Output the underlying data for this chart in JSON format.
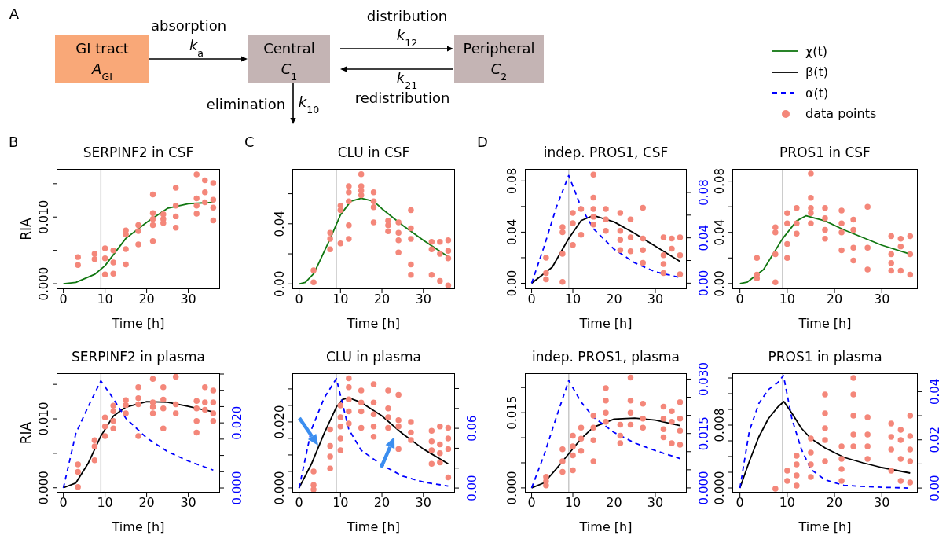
{
  "chart_data": [
    {
      "type": "other",
      "annotations": [
        "A",
        "GI tract",
        "A$_{GI}$",
        "absorption",
        "k$_{a}$",
        "Central",
        "C$_{1}$",
        "distribution",
        "k$_{12}$",
        "k$_{21}$",
        "redistribution",
        "Peripheral",
        "C$_{2}$",
        "elimination",
        "k$_{10}$"
      ]
    },
    {
      "type": "line",
      "title": "SERPINF2 in CSF",
      "xlabel": "Time [h]",
      "ylabel": "RIA",
      "annotations": [
        "B"
      ],
      "legend": "top right",
      "xlim": [
        -1.44,
        37.44
      ],
      "xticks": [
        0,
        10,
        20,
        30
      ],
      "ylim": [
        -0.0007,
        0.0171
      ],
      "yticks": [
        {
          "value": 0,
          "label": "0.000"
        },
        {
          "value": 0.005,
          "label": null
        },
        {
          "value": 0.01,
          "label": "0.010"
        },
        {
          "value": 0.015,
          "label": null
        }
      ],
      "ref_lines": [
        {
          "axis": "x",
          "value": 9,
          "color": "#c8c8c8"
        }
      ],
      "series": [
        {
          "name": "χ(t)",
          "color": "#117711",
          "x": [
            0,
            3,
            7.5,
            10,
            15,
            20,
            25,
            30,
            36
          ],
          "values": [
            0,
            0.0002,
            0.0014,
            0.0027,
            0.0068,
            0.0092,
            0.0113,
            0.012,
            0.0122
          ]
        },
        {
          "name": "data points",
          "type": "scatter",
          "marker": "circle",
          "color": "#f4877a",
          "x": [
            3.5,
            3.5,
            7.5,
            7.5,
            10,
            10,
            10,
            12,
            12,
            12,
            15,
            15,
            15,
            15,
            18,
            18,
            18,
            21.5,
            21.5,
            21.5,
            21.5,
            21.5,
            24,
            24,
            24,
            27,
            27,
            27,
            27,
            32,
            32,
            32,
            32,
            34,
            34,
            34,
            36,
            36,
            36,
            36
          ],
          "values": [
            0.004,
            0.0028,
            0.0045,
            0.0037,
            0.0053,
            0.0038,
            0.0014,
            0.005,
            0.0032,
            0.0015,
            0.008,
            0.0074,
            0.0052,
            0.0029,
            0.0088,
            0.0079,
            0.0059,
            0.0134,
            0.0106,
            0.0097,
            0.0088,
            0.0064,
            0.0104,
            0.0097,
            0.0091,
            0.0144,
            0.0117,
            0.0101,
            0.0084,
            0.0164,
            0.0128,
            0.0117,
            0.0105,
            0.0155,
            0.0137,
            0.0122,
            0.0151,
            0.0126,
            0.0114,
            0.0095
          ]
        }
      ]
    },
    {
      "type": "line",
      "title": "CLU in CSF",
      "xlabel": "Time [h]",
      "annotations": [
        "C"
      ],
      "legend": "top right",
      "xlim": [
        -1.44,
        37.44
      ],
      "xticks": [
        0,
        10,
        20,
        30
      ],
      "ylim": [
        -0.003,
        0.076
      ],
      "yticks": [
        {
          "value": 0,
          "label": "0.00"
        },
        {
          "value": 0.02,
          "label": null
        },
        {
          "value": 0.04,
          "label": "0.04"
        },
        {
          "value": 0.06,
          "label": null
        }
      ],
      "ref_lines": [
        {
          "axis": "x",
          "value": 9,
          "color": "#c8c8c8"
        }
      ],
      "series": [
        {
          "name": "χ(t)",
          "color": "#117711",
          "x": [
            0,
            1.5,
            3.6,
            7.5,
            10,
            12.5,
            15,
            18,
            20,
            25,
            30,
            36
          ],
          "values": [
            0,
            0.001,
            0.007,
            0.03,
            0.046,
            0.055,
            0.057,
            0.055,
            0.05,
            0.039,
            0.029,
            0.018
          ]
        },
        {
          "name": "data points",
          "type": "scatter",
          "marker": "circle",
          "color": "#f4877a",
          "x": [
            3.5,
            3.5,
            7.5,
            7.5,
            7.5,
            10,
            10,
            10,
            12,
            12,
            12,
            12,
            12,
            15,
            15,
            15,
            15,
            18,
            18,
            18,
            18,
            21.5,
            21.5,
            21.5,
            24,
            24,
            24,
            24,
            27,
            27,
            27,
            27,
            27,
            32,
            32,
            32,
            34,
            34,
            34,
            36,
            36,
            36,
            36
          ],
          "values": [
            0.009,
            0.001,
            0.034,
            0.03,
            0.023,
            0.052,
            0.049,
            0.027,
            0.065,
            0.061,
            0.055,
            0.039,
            0.03,
            0.073,
            0.065,
            0.062,
            0.059,
            0.061,
            0.055,
            0.051,
            0.041,
            0.042,
            0.039,
            0.035,
            0.041,
            0.034,
            0.029,
            0.021,
            0.049,
            0.037,
            0.03,
            0.013,
            0.006,
            0.028,
            0.023,
            0.006,
            0.028,
            0.02,
            0.002,
            0.029,
            0.022,
            0.017,
            -0.001
          ]
        }
      ]
    },
    {
      "type": "line",
      "title": "indep. PROS1, CSF",
      "xlabel": "Time [h]",
      "annotations": [
        "D"
      ],
      "legend": "top right",
      "xlim": [
        -1.44,
        37.44
      ],
      "xticks": [
        0,
        10,
        20,
        30
      ],
      "ylim": [
        -0.004,
        0.0888
      ],
      "yticks": [
        {
          "value": 0,
          "label": "0.00"
        },
        {
          "value": 0.02,
          "label": null
        },
        {
          "value": 0.04,
          "label": "0.04"
        },
        {
          "value": 0.06,
          "label": null
        },
        {
          "value": 0.08,
          "label": "0.08"
        }
      ],
      "y2lim": [
        -0.0046,
        0.1001
      ],
      "y2ticks": [
        {
          "value": 0,
          "label": "0.00"
        },
        {
          "value": 0.02,
          "label": null
        },
        {
          "value": 0.04,
          "label": "0.04"
        },
        {
          "value": 0.06,
          "label": null
        },
        {
          "value": 0.08,
          "label": "0.08"
        }
      ],
      "ref_lines": [
        {
          "axis": "x",
          "value": 9,
          "color": "#c8c8c8"
        }
      ],
      "series": [
        {
          "name": "β(t)",
          "color": "#000000",
          "x": [
            0,
            5,
            9,
            12,
            15,
            20,
            25,
            30,
            36
          ],
          "values": [
            0,
            0.0126,
            0.035,
            0.049,
            0.053,
            0.048,
            0.039,
            0.029,
            0.017
          ]
        },
        {
          "name": "α(t)",
          "color": "#0000ff",
          "axis": "y2",
          "line_style": "dashed",
          "x": [
            0,
            3,
            6,
            9,
            12,
            15,
            20,
            25,
            30,
            36
          ],
          "values": [
            0,
            0.032,
            0.067,
            0.095,
            0.067,
            0.048,
            0.03,
            0.018,
            0.01,
            0.005
          ]
        },
        {
          "name": "data points",
          "type": "scatter",
          "marker": "circle",
          "color": "#f4877a",
          "x": [
            3.5,
            3.5,
            3.5,
            7.5,
            7.5,
            7.5,
            7.5,
            10,
            10,
            10,
            12,
            12,
            15,
            15,
            15,
            15,
            15,
            18,
            18,
            18,
            21.5,
            21.5,
            21.5,
            21.5,
            24,
            24,
            24,
            27,
            27,
            27,
            27,
            32,
            32,
            32,
            32,
            34,
            34,
            36,
            36,
            36
          ],
          "values": [
            0.008,
            0.003,
            0.02,
            0.044,
            0.04,
            0.023,
            0.001,
            0.055,
            0.047,
            0.03,
            0.058,
            0.038,
            0.085,
            0.067,
            0.058,
            0.052,
            0.046,
            0.058,
            0.05,
            0.041,
            0.055,
            0.041,
            0.034,
            0.026,
            0.05,
            0.036,
            0.025,
            0.059,
            0.035,
            0.026,
            0.016,
            0.036,
            0.022,
            0.015,
            0.008,
            0.035,
            0.027,
            0.036,
            0.022,
            0.007
          ]
        }
      ]
    },
    {
      "type": "line",
      "title": "PROS1 in CSF",
      "xlabel": "Time [h]",
      "legend": "top right",
      "xlim": [
        -1.44,
        37.44
      ],
      "xticks": [
        0,
        10,
        20,
        30
      ],
      "ylim": [
        -0.0038,
        0.089
      ],
      "yticks": [
        {
          "value": 0,
          "label": "0.00"
        },
        {
          "value": 0.02,
          "label": null
        },
        {
          "value": 0.04,
          "label": "0.04"
        },
        {
          "value": 0.06,
          "label": null
        },
        {
          "value": 0.08,
          "label": "0.08"
        }
      ],
      "ref_lines": [
        {
          "axis": "x",
          "value": 9,
          "color": "#c8c8c8"
        }
      ],
      "series": [
        {
          "name": "χ(t)",
          "color": "#117711",
          "x": [
            0,
            1.5,
            5,
            9,
            12,
            14,
            18,
            22,
            26,
            30,
            36
          ],
          "values": [
            0,
            0.001,
            0.011,
            0.035,
            0.049,
            0.053,
            0.049,
            0.042,
            0.036,
            0.03,
            0.023
          ]
        },
        {
          "name": "data points",
          "type": "scatter",
          "marker": "circle",
          "color": "#f4877a",
          "x": [
            3.6,
            3.6,
            3.6,
            7.5,
            7.5,
            7.5,
            7.5,
            10,
            10,
            10,
            10,
            12,
            12,
            12,
            15,
            15,
            15,
            15,
            15,
            18,
            18,
            18,
            18,
            21.5,
            21.5,
            21.5,
            21.5,
            24,
            24,
            24,
            24,
            27,
            27,
            27,
            32,
            32,
            32,
            32,
            34,
            34,
            34,
            36,
            36,
            36
          ],
          "values": [
            0.02,
            0.007,
            0.004,
            0.044,
            0.04,
            0.023,
            0.001,
            0.055,
            0.047,
            0.031,
            0.02,
            0.059,
            0.047,
            0.039,
            0.086,
            0.067,
            0.059,
            0.055,
            0.047,
            0.059,
            0.051,
            0.042,
            0.035,
            0.057,
            0.047,
            0.04,
            0.026,
            0.05,
            0.042,
            0.028,
            0.018,
            0.06,
            0.028,
            0.011,
            0.037,
            0.023,
            0.016,
            0.01,
            0.035,
            0.029,
            0.01,
            0.037,
            0.023,
            0.007
          ]
        }
      ]
    },
    {
      "type": "line",
      "title": "SERPINF2 in plasma",
      "xlabel": "Time [h]",
      "ylabel": "RIA",
      "legend": "top right",
      "xlim": [
        -1.44,
        37.44
      ],
      "xticks": [
        0,
        10,
        20,
        30
      ],
      "ylim": [
        -0.0006,
        0.0165
      ],
      "yticks": [
        {
          "value": 0,
          "label": "0.000"
        },
        {
          "value": 0.005,
          "label": null
        },
        {
          "value": 0.01,
          "label": "0.010"
        },
        {
          "value": 0.015,
          "label": null
        }
      ],
      "y2lim": [
        -0.0012,
        0.035
      ],
      "y2ticks": [
        {
          "value": 0,
          "label": "0.000"
        },
        {
          "value": 0.005,
          "label": null
        },
        {
          "value": 0.01,
          "label": null
        },
        {
          "value": 0.015,
          "label": null
        },
        {
          "value": 0.02,
          "label": "0.020"
        },
        {
          "value": 0.025,
          "label": null
        },
        {
          "value": 0.03,
          "label": null
        },
        {
          "value": 0.035,
          "label": null
        }
      ],
      "ref_lines": [
        {
          "axis": "x",
          "value": 9,
          "color": "#c8c8c8"
        }
      ],
      "series": [
        {
          "name": "β(t)",
          "color": "#000000",
          "x": [
            0,
            3,
            6,
            9,
            12,
            15,
            20,
            25,
            30,
            36
          ],
          "values": [
            0,
            0.0007,
            0.0036,
            0.0075,
            0.0104,
            0.0117,
            0.0125,
            0.0124,
            0.0118,
            0.011
          ]
        },
        {
          "name": "α(t)",
          "color": "#0000ff",
          "axis": "y2",
          "line_style": "dashed",
          "x": [
            0,
            3,
            6,
            9,
            12,
            15,
            20,
            25,
            30,
            36
          ],
          "values": [
            0,
            0.0168,
            0.0251,
            0.0329,
            0.0274,
            0.0214,
            0.0154,
            0.0112,
            0.0083,
            0.0055
          ]
        },
        {
          "name": "data points",
          "type": "scatter",
          "marker": "circle",
          "color": "#f4877a",
          "x": [
            3.5,
            3.5,
            3.5,
            7.5,
            7.5,
            7.5,
            10,
            10,
            10,
            12,
            12,
            12,
            12,
            15,
            15,
            15,
            18,
            18,
            18,
            18,
            21.5,
            21.5,
            21.5,
            21.5,
            24,
            24,
            24,
            24,
            27,
            27,
            27,
            32,
            32,
            32,
            32,
            34,
            34,
            34,
            36,
            36,
            36,
            36
          ],
          "values": [
            0.0034,
            0.0023,
            0.0001,
            0.0069,
            0.006,
            0.004,
            0.0102,
            0.0089,
            0.0075,
            0.0119,
            0.0111,
            0.0097,
            0.0086,
            0.0127,
            0.012,
            0.0108,
            0.0146,
            0.013,
            0.0121,
            0.0075,
            0.0158,
            0.0124,
            0.0117,
            0.0108,
            0.0146,
            0.0128,
            0.0115,
            0.0086,
            0.0161,
            0.0121,
            0.0108,
            0.0126,
            0.0115,
            0.0097,
            0.008,
            0.0146,
            0.0124,
            0.0113,
            0.0141,
            0.0124,
            0.0108,
            0.0097
          ]
        }
      ]
    },
    {
      "type": "line",
      "title": "CLU in plasma",
      "xlabel": "Time [h]",
      "legend": "top right",
      "xlim": [
        -1.44,
        37.44
      ],
      "xticks": [
        0,
        10,
        20,
        30
      ],
      "ylim": [
        -0.0012,
        0.0345
      ],
      "yticks": [
        {
          "value": 0,
          "label": "0.000"
        },
        {
          "value": 0.005,
          "label": null
        },
        {
          "value": 0.01,
          "label": null
        },
        {
          "value": 0.015,
          "label": null
        },
        {
          "value": 0.02,
          "label": "0.020"
        },
        {
          "value": 0.025,
          "label": null
        },
        {
          "value": 0.03,
          "label": null
        }
      ],
      "y2lim": [
        -0.0039,
        0.1146
      ],
      "y2ticks": [
        {
          "value": 0,
          "label": "0.00"
        },
        {
          "value": 0.02,
          "label": null
        },
        {
          "value": 0.04,
          "label": null
        },
        {
          "value": 0.06,
          "label": "0.06"
        },
        {
          "value": 0.08,
          "label": null
        },
        {
          "value": 0.1,
          "label": null
        }
      ],
      "ref_lines": [
        {
          "axis": "x",
          "value": 9,
          "color": "#c8c8c8"
        }
      ],
      "series": [
        {
          "name": "β(t)",
          "color": "#000000",
          "x": [
            0,
            3,
            6,
            9,
            10.5,
            12,
            15,
            20,
            25,
            30,
            36
          ],
          "values": [
            0,
            0.0073,
            0.0164,
            0.0245,
            0.0268,
            0.0273,
            0.0259,
            0.0218,
            0.0164,
            0.0118,
            0.0073
          ]
        },
        {
          "name": "α(t)",
          "color": "#0000ff",
          "axis": "y2",
          "line_style": "dashed",
          "x": [
            0,
            3,
            6,
            9,
            12,
            15,
            20,
            25,
            30,
            36
          ],
          "values": [
            0,
            0.059,
            0.09,
            0.11,
            0.059,
            0.038,
            0.023,
            0.012,
            0.006,
            0.002
          ]
        },
        {
          "name": "data points",
          "type": "scatter",
          "marker": "circle",
          "color": "#f4877a",
          "x": [
            3.5,
            3.5,
            3.5,
            7.5,
            7.5,
            7.5,
            7.5,
            10,
            10,
            10,
            10,
            10,
            12,
            12,
            12,
            12,
            12,
            15,
            15,
            15,
            15,
            18,
            18,
            18,
            18,
            18,
            21.5,
            21.5,
            21.5,
            21.5,
            24,
            24,
            24,
            24,
            27,
            27,
            27,
            32,
            32,
            32,
            32,
            34,
            34,
            34,
            34,
            36,
            36,
            36,
            36
          ],
          "values": [
            0.005,
            0.0009,
            -0.0005,
            0.0177,
            0.0127,
            0.0095,
            0.0059,
            0.025,
            0.0214,
            0.0186,
            0.015,
            0.0114,
            0.0332,
            0.0305,
            0.0268,
            0.0232,
            0.0195,
            0.0295,
            0.0259,
            0.0232,
            0.0182,
            0.0314,
            0.0259,
            0.0223,
            0.0186,
            0.0155,
            0.0295,
            0.0241,
            0.0214,
            0.0182,
            0.0282,
            0.0205,
            0.0186,
            0.0118,
            0.02,
            0.0168,
            0.0145,
            0.0173,
            0.0141,
            0.0114,
            0.0073,
            0.0186,
            0.0132,
            0.0105,
            0.0077,
            0.0182,
            0.015,
            0.0118,
            0.0032
          ]
        }
      ]
    },
    {
      "type": "line",
      "title": "indep. PROS1, plasma",
      "xlabel": "Time [h]",
      "legend": "top right",
      "xlim": [
        -1.44,
        37.44
      ],
      "xticks": [
        0,
        10,
        20,
        30
      ],
      "ylim": [
        -0.0008,
        0.0227
      ],
      "yticks": [
        {
          "value": 0,
          "label": "0.000"
        },
        {
          "value": 0.005,
          "label": null
        },
        {
          "value": 0.01,
          "label": null
        },
        {
          "value": 0.015,
          "label": "0.015"
        },
        {
          "value": 0.02,
          "label": null
        }
      ],
      "y2lim": [
        -0.0011,
        0.0314
      ],
      "y2ticks": [
        {
          "value": 0,
          "label": "0.000"
        },
        {
          "value": 0.005,
          "label": null
        },
        {
          "value": 0.01,
          "label": null
        },
        {
          "value": 0.015,
          "label": "0.015"
        },
        {
          "value": 0.02,
          "label": null
        },
        {
          "value": 0.025,
          "label": null
        },
        {
          "value": 0.03,
          "label": "0.030"
        }
      ],
      "ref_lines": [
        {
          "axis": "x",
          "value": 9,
          "color": "#c8c8c8"
        }
      ],
      "series": [
        {
          "name": "β(t)",
          "color": "#000000",
          "x": [
            0,
            3,
            6,
            9,
            12,
            15,
            20,
            25,
            30,
            36
          ],
          "values": [
            0,
            0.001,
            0.0038,
            0.0068,
            0.0098,
            0.0121,
            0.0137,
            0.0139,
            0.0135,
            0.0124
          ]
        },
        {
          "name": "α(t)",
          "color": "#0000ff",
          "axis": "y2",
          "line_style": "dashed",
          "x": [
            0,
            3,
            6,
            9,
            12,
            15,
            20,
            25,
            30,
            36
          ],
          "values": [
            0,
            0.009,
            0.0195,
            0.0296,
            0.0237,
            0.0195,
            0.0153,
            0.0124,
            0.0103,
            0.0081
          ]
        },
        {
          "name": "data points",
          "type": "scatter",
          "marker": "circle",
          "color": "#f4877a",
          "x": [
            3.5,
            3.5,
            3.5,
            7.5,
            7.5,
            7.5,
            10,
            10,
            10,
            10,
            12,
            12,
            12,
            15,
            15,
            15,
            15,
            18,
            18,
            18,
            18,
            21.5,
            21.5,
            21.5,
            24,
            24,
            24,
            24,
            27,
            27,
            27,
            32,
            32,
            32,
            32,
            34,
            34,
            34,
            36,
            36,
            36,
            36
          ],
          "values": [
            0.0022,
            0.0013,
            0.0005,
            0.0077,
            0.0053,
            0.0032,
            0.0104,
            0.0083,
            0.0065,
            0.0035,
            0.012,
            0.0098,
            0.0074,
            0.0144,
            0.012,
            0.0095,
            0.0053,
            0.0199,
            0.0174,
            0.015,
            0.0132,
            0.0126,
            0.0104,
            0.0089,
            0.022,
            0.0174,
            0.015,
            0.0126,
            0.0168,
            0.0138,
            0.012,
            0.0162,
            0.0138,
            0.0117,
            0.0101,
            0.0153,
            0.0132,
            0.0089,
            0.0171,
            0.0138,
            0.0114,
            0.0086
          ]
        }
      ]
    },
    {
      "type": "line",
      "title": "PROS1 in plasma",
      "xlabel": "Time [h]",
      "legend": "top right",
      "xlim": [
        -1.44,
        37.44
      ],
      "xticks": [
        0,
        10,
        20,
        30
      ],
      "ylim": [
        -0.0005,
        0.0145
      ],
      "yticks": [
        {
          "value": 0,
          "label": "0.000"
        },
        {
          "value": 0.002,
          "label": null
        },
        {
          "value": 0.004,
          "label": null
        },
        {
          "value": 0.006,
          "label": null
        },
        {
          "value": 0.008,
          "label": "0.008"
        },
        {
          "value": 0.01,
          "label": null
        },
        {
          "value": 0.012,
          "label": null
        },
        {
          "value": 0.014,
          "label": null
        }
      ],
      "y2lim": [
        -0.0016,
        0.0473
      ],
      "y2ticks": [
        {
          "value": 0,
          "label": "0.00"
        },
        {
          "value": 0.01,
          "label": null
        },
        {
          "value": 0.02,
          "label": "0.02"
        },
        {
          "value": 0.03,
          "label": null
        },
        {
          "value": 0.04,
          "label": "0.04"
        }
      ],
      "ref_lines": [
        {
          "axis": "x",
          "value": 9,
          "color": "#c8c8c8"
        }
      ],
      "series": [
        {
          "name": "β(t)",
          "color": "#000000",
          "x": [
            0,
            2,
            4,
            6,
            8,
            9.3,
            11,
            13,
            15,
            18,
            22,
            26,
            30,
            36
          ],
          "values": [
            0,
            0.0034,
            0.0065,
            0.0088,
            0.0103,
            0.011,
            0.0095,
            0.0076,
            0.0063,
            0.0051,
            0.0039,
            0.0032,
            0.0026,
            0.0019
          ]
        },
        {
          "name": "α(t)",
          "color": "#0000ff",
          "axis": "y2",
          "line_style": "dashed",
          "x": [
            0,
            2,
            4,
            6,
            8,
            9.2,
            11,
            13,
            15,
            18,
            22,
            30,
            36
          ],
          "values": [
            0,
            0.0237,
            0.0351,
            0.0408,
            0.0437,
            0.0467,
            0.0287,
            0.0161,
            0.0078,
            0.0034,
            0.0011,
            0.0003,
            0
          ]
        },
        {
          "name": "data points",
          "type": "scatter",
          "marker": "circle",
          "color": "#f4877a",
          "x": [
            7.5,
            10,
            10,
            12,
            12,
            12,
            12,
            15,
            15,
            15,
            15,
            18,
            18,
            18,
            18,
            18,
            21.5,
            21.5,
            21.5,
            21.5,
            24,
            24,
            24,
            24,
            24,
            27,
            27,
            27,
            27,
            32,
            32,
            32,
            32,
            34,
            34,
            34,
            34,
            36,
            36,
            36,
            36,
            36
          ],
          "values": [
            -0.0001,
            0.0022,
            0.0009,
            0.0041,
            0.003,
            0.0016,
            0.0003,
            0.0063,
            0.0045,
            0.003,
            0.0014,
            0.0119,
            0.0095,
            0.0076,
            0.0061,
            0.0034,
            0.0053,
            0.0037,
            0.0024,
            0.0009,
            0.014,
            0.0119,
            0.0092,
            0.0068,
            0.0053,
            0.009,
            0.0068,
            0.0053,
            0.0037,
            0.0082,
            0.0065,
            0.0049,
            0.0022,
            0.0074,
            0.0061,
            0.0037,
            0.0009,
            0.0092,
            0.0066,
            0.0049,
            0.0034,
            0.0007
          ]
        }
      ]
    }
  ]
}
